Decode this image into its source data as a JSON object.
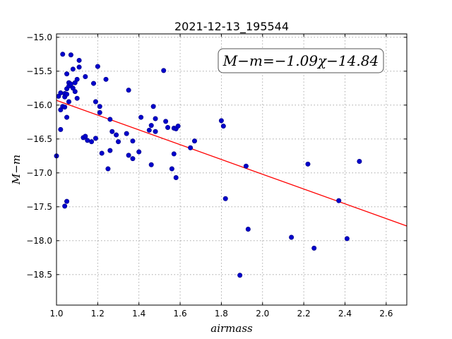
{
  "chart_data": {
    "type": "scatter",
    "title": "2021-12-13_195544",
    "xlabel": "airmass",
    "ylabel": "M−m",
    "annotation": "M−m=−1.09χ−14.84",
    "xlim": [
      1.0,
      2.7
    ],
    "ylim": [
      -18.95,
      -14.95
    ],
    "y_inverted": true,
    "grid": true,
    "xticks": [
      1.0,
      1.2,
      1.4,
      1.6,
      1.8,
      2.0,
      2.2,
      2.4,
      2.6
    ],
    "xtick_labels": [
      "1.0",
      "1.2",
      "1.4",
      "1.6",
      "1.8",
      "2.0",
      "2.2",
      "2.4",
      "2.6"
    ],
    "yticks": [
      -15.0,
      -15.5,
      -16.0,
      -16.5,
      -17.0,
      -17.5,
      -18.0,
      -18.5
    ],
    "ytick_labels": [
      "−15.0",
      "−15.5",
      "−16.0",
      "−16.5",
      "−17.0",
      "−17.5",
      "−18.0",
      "−18.5"
    ],
    "colors": {
      "points": "#0000cc",
      "points_edge": "#000080",
      "fit": "#ff0000"
    },
    "fit": {
      "slope": -1.09,
      "intercept": -14.84
    },
    "points": [
      [
        1.0,
        -16.75
      ],
      [
        1.01,
        -15.87
      ],
      [
        1.02,
        -15.82
      ],
      [
        1.02,
        -16.36
      ],
      [
        1.02,
        -16.07
      ],
      [
        1.03,
        -15.25
      ],
      [
        1.03,
        -16.02
      ],
      [
        1.04,
        -15.83
      ],
      [
        1.04,
        -15.88
      ],
      [
        1.04,
        -16.03
      ],
      [
        1.05,
        -15.84
      ],
      [
        1.05,
        -15.54
      ],
      [
        1.05,
        -15.76
      ],
      [
        1.05,
        -16.18
      ],
      [
        1.04,
        -17.49
      ],
      [
        1.05,
        -17.42
      ],
      [
        1.06,
        -15.95
      ],
      [
        1.06,
        -15.67
      ],
      [
        1.06,
        -15.72
      ],
      [
        1.07,
        -15.26
      ],
      [
        1.07,
        -15.69
      ],
      [
        1.08,
        -15.75
      ],
      [
        1.08,
        -15.47
      ],
      [
        1.09,
        -15.8
      ],
      [
        1.09,
        -15.67
      ],
      [
        1.1,
        -15.9
      ],
      [
        1.1,
        -15.62
      ],
      [
        1.11,
        -15.34
      ],
      [
        1.11,
        -15.44
      ],
      [
        1.13,
        -16.48
      ],
      [
        1.14,
        -16.46
      ],
      [
        1.14,
        -15.58
      ],
      [
        1.15,
        -16.52
      ],
      [
        1.17,
        -16.54
      ],
      [
        1.18,
        -15.68
      ],
      [
        1.19,
        -15.95
      ],
      [
        1.19,
        -16.49
      ],
      [
        1.2,
        -15.43
      ],
      [
        1.21,
        -16.02
      ],
      [
        1.21,
        -16.11
      ],
      [
        1.22,
        -16.71
      ],
      [
        1.24,
        -15.62
      ],
      [
        1.25,
        -16.94
      ],
      [
        1.26,
        -16.21
      ],
      [
        1.26,
        -16.67
      ],
      [
        1.27,
        -16.39
      ],
      [
        1.29,
        -16.44
      ],
      [
        1.3,
        -16.54
      ],
      [
        1.34,
        -16.42
      ],
      [
        1.35,
        -15.78
      ],
      [
        1.35,
        -16.74
      ],
      [
        1.37,
        -16.79
      ],
      [
        1.37,
        -16.53
      ],
      [
        1.4,
        -16.69
      ],
      [
        1.41,
        -16.18
      ],
      [
        1.45,
        -16.37
      ],
      [
        1.46,
        -16.3
      ],
      [
        1.46,
        -16.88
      ],
      [
        1.47,
        -16.02
      ],
      [
        1.48,
        -16.2
      ],
      [
        1.48,
        -16.39
      ],
      [
        1.52,
        -15.49
      ],
      [
        1.53,
        -16.24
      ],
      [
        1.54,
        -16.33
      ],
      [
        1.56,
        -16.94
      ],
      [
        1.57,
        -16.34
      ],
      [
        1.57,
        -16.72
      ],
      [
        1.58,
        -16.35
      ],
      [
        1.58,
        -17.07
      ],
      [
        1.59,
        -16.31
      ],
      [
        1.65,
        -16.63
      ],
      [
        1.67,
        -16.53
      ],
      [
        1.8,
        -16.23
      ],
      [
        1.81,
        -16.31
      ],
      [
        1.82,
        -17.38
      ],
      [
        1.89,
        -18.51
      ],
      [
        1.92,
        -16.9
      ],
      [
        1.93,
        -17.83
      ],
      [
        2.14,
        -17.95
      ],
      [
        2.22,
        -16.87
      ],
      [
        2.25,
        -18.11
      ],
      [
        2.37,
        -17.41
      ],
      [
        2.41,
        -17.97
      ],
      [
        2.47,
        -16.83
      ]
    ]
  }
}
